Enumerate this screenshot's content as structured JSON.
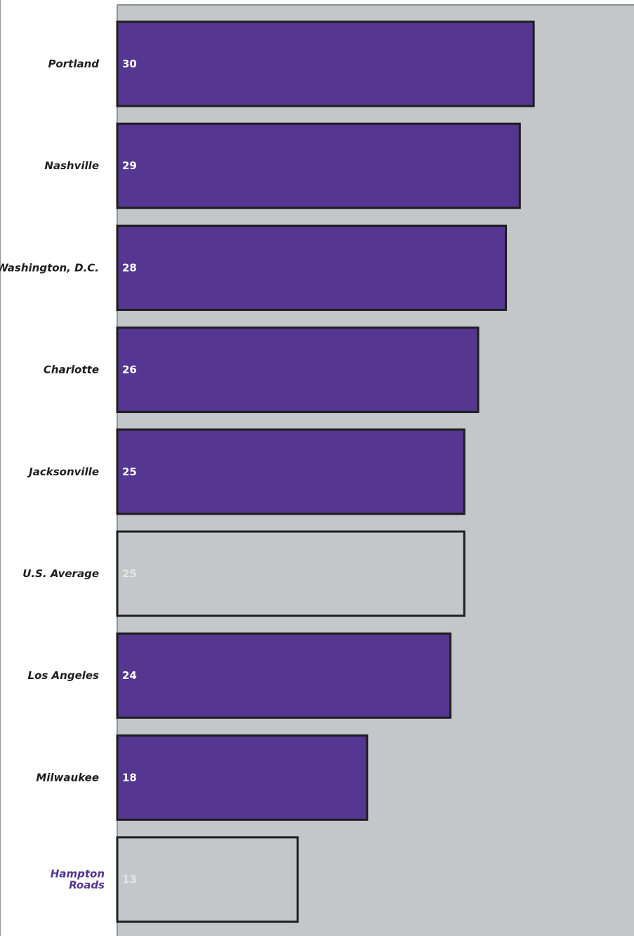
{
  "colors": {
    "plot_background": "#c4c7ca",
    "bar_primary": "#553691",
    "bar_outline": "#1e1e1e",
    "label_default": "#1e1e1e",
    "label_highlight": "#553691",
    "value_on_filled": "#ffffff",
    "value_on_hollow": "#e6e6e6"
  },
  "chart_data": {
    "type": "bar",
    "orientation": "horizontal",
    "categories": [
      "Portland",
      "Nashville",
      "Washington, D.C.",
      "Charlotte",
      "Jacksonville",
      "U.S. Average",
      "Los Angeles",
      "Milwaukee",
      "Hampton Roads"
    ],
    "values": [
      30,
      29,
      28,
      26,
      25,
      25,
      24,
      18,
      13
    ],
    "value_labels": [
      "30",
      "29",
      "28",
      "26",
      "25",
      "25",
      "24",
      "18",
      "13"
    ],
    "bar_styles": [
      "filled",
      "filled",
      "filled",
      "filled",
      "filled",
      "hollow",
      "filled",
      "filled",
      "hollow"
    ],
    "label_styles": [
      "default",
      "default",
      "default",
      "default",
      "default",
      "default",
      "default",
      "default",
      "highlight"
    ],
    "xlim": [
      0,
      40
    ],
    "title": "",
    "xlabel": "",
    "ylabel": "",
    "grid": false,
    "legend": "none"
  }
}
